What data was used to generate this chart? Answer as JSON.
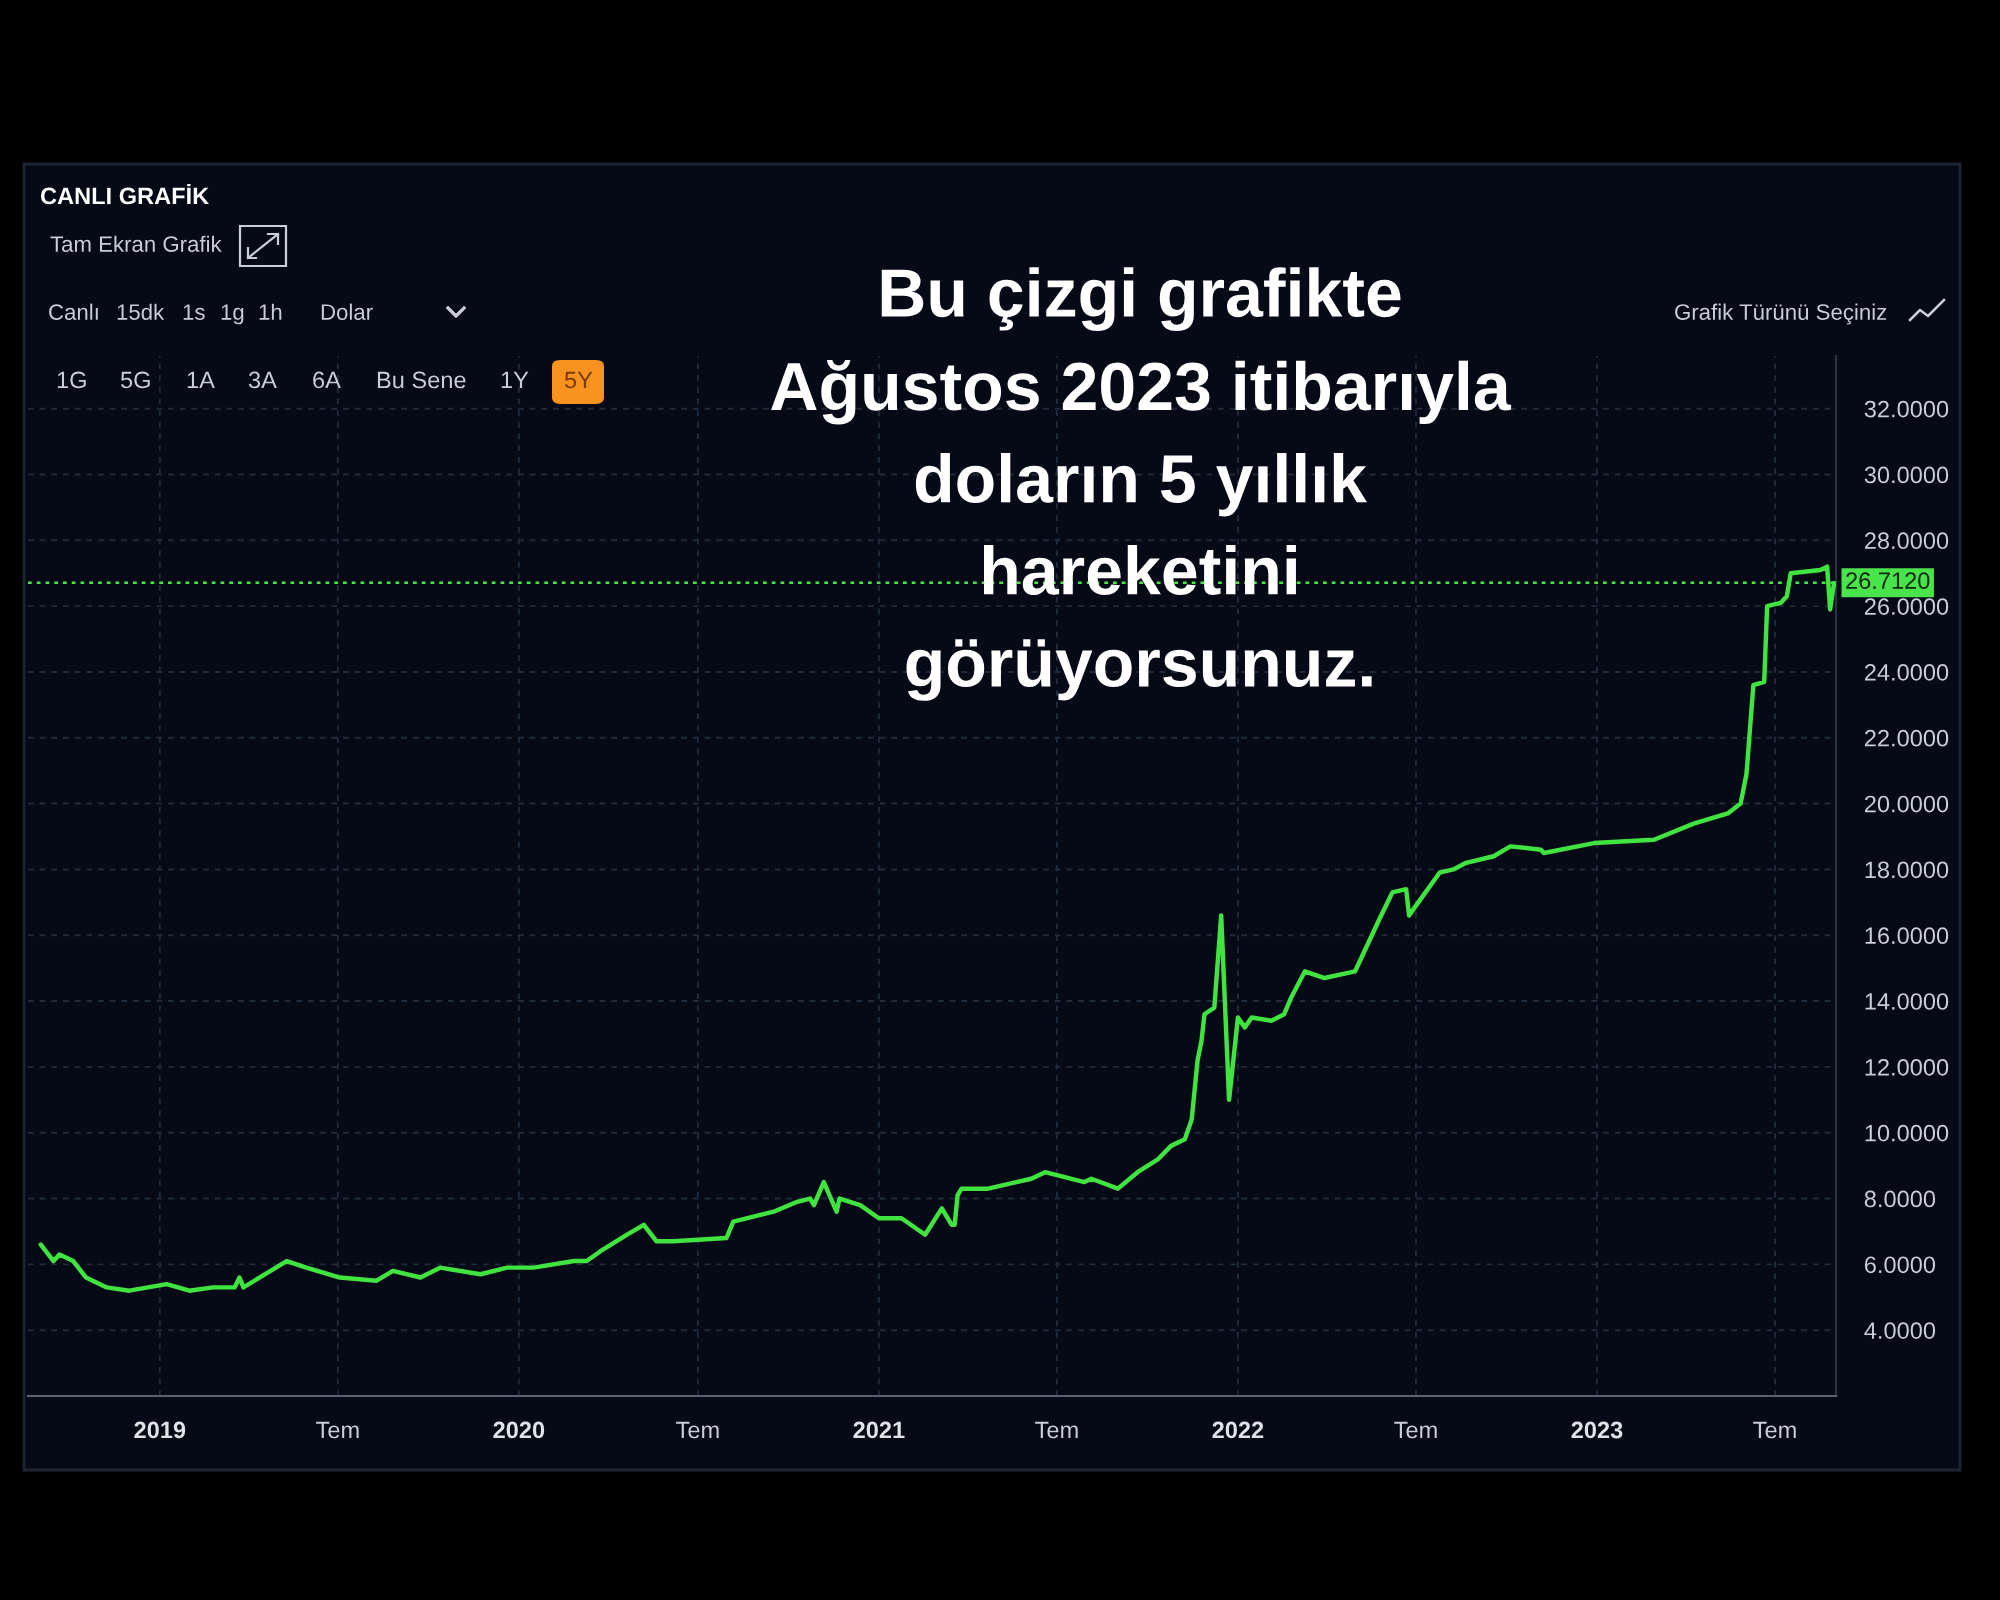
{
  "chart_data": {
    "type": "line",
    "title": "CANLI GRAFİK",
    "annotations": [
      "Bu çizgi grafikte\nAğustos 2023 itibarıyla\ndoların 5 yıllık\nhareketini\ngörüyorsunuz.",
      "Tam Ekran Grafik",
      "Canlı",
      "15dk",
      "1s",
      "1g",
      "1h",
      "Dolar",
      "1G",
      "5G",
      "1A",
      "3A",
      "6A",
      "Bu Sene",
      "1Y",
      "5Y",
      "Grafik Türünü Seçiniz"
    ],
    "x": [
      "2018-09-02",
      "2018-09-15",
      "2018-09-21",
      "2018-10-05",
      "2018-10-18",
      "2018-11-08",
      "2018-12-01",
      "2019-01-08",
      "2019-01-31",
      "2019-02-24",
      "2019-03-18",
      "2019-03-23",
      "2019-03-27",
      "2019-05-10",
      "2019-05-30",
      "2019-07-03",
      "2019-08-09",
      "2019-08-26",
      "2019-09-23",
      "2019-10-13",
      "2019-11-23",
      "2019-12-20",
      "2020-01-16",
      "2020-02-26",
      "2020-03-10",
      "2020-03-24",
      "2020-04-20",
      "2020-05-07",
      "2020-05-20",
      "2020-06-06",
      "2020-07-30",
      "2020-08-06",
      "2020-09-16",
      "2020-10-10",
      "2020-10-23",
      "2020-10-27",
      "2020-11-06",
      "2020-11-19",
      "2020-11-22",
      "2020-12-13",
      "2021-01-01",
      "2021-01-24",
      "2021-02-17",
      "2021-03-06",
      "2021-03-16",
      "2021-03-19",
      "2021-03-22",
      "2021-03-26",
      "2021-04-22",
      "2021-06-05",
      "2021-06-19",
      "2021-07-29",
      "2021-08-05",
      "2021-09-01",
      "2021-09-21",
      "2021-10-12",
      "2021-10-25",
      "2021-11-08",
      "2021-11-15",
      "2021-11-21",
      "2021-11-25",
      "2021-11-28",
      "2021-12-08",
      "2021-12-15",
      "2021-12-23",
      "2022-01-01",
      "2022-01-08",
      "2022-01-15",
      "2022-02-04",
      "2022-02-17",
      "2022-02-24",
      "2022-03-10",
      "2022-03-30",
      "2022-04-30",
      "2022-05-25",
      "2022-06-07",
      "2022-06-21",
      "2022-06-24",
      "2022-07-01",
      "2022-07-25",
      "2022-08-08",
      "2022-08-21",
      "2022-09-18",
      "2022-10-05",
      "2022-11-05",
      "2022-11-08",
      "2022-12-29",
      "2023-02-28",
      "2023-04-10",
      "2023-05-14",
      "2023-05-27",
      "2023-06-02",
      "2023-06-09",
      "2023-06-20",
      "2023-06-23",
      "2023-07-07",
      "2023-07-13",
      "2023-07-17",
      "2023-08-16",
      "2023-08-23",
      "2023-08-26",
      "2023-08-30"
    ],
    "series": [
      {
        "color": "#40e340",
        "values": [
          6.6,
          6.1,
          6.3,
          6.1,
          5.6,
          5.3,
          5.2,
          5.4,
          5.2,
          5.3,
          5.3,
          5.6,
          5.3,
          6.1,
          5.9,
          5.6,
          5.5,
          5.8,
          5.6,
          5.9,
          5.7,
          5.9,
          5.9,
          6.1,
          6.1,
          6.4,
          6.9,
          7.2,
          6.7,
          6.7,
          6.8,
          7.3,
          7.6,
          7.9,
          8.0,
          7.8,
          8.5,
          7.6,
          8.0,
          7.8,
          7.4,
          7.4,
          6.9,
          7.7,
          7.2,
          7.2,
          8.1,
          8.3,
          8.3,
          8.6,
          8.8,
          8.5,
          8.6,
          8.3,
          8.8,
          9.2,
          9.6,
          9.8,
          10.4,
          12.2,
          12.8,
          13.6,
          13.8,
          16.6,
          11.0,
          13.5,
          13.2,
          13.5,
          13.4,
          13.6,
          14.1,
          14.9,
          14.7,
          14.9,
          16.5,
          17.3,
          17.4,
          16.6,
          16.9,
          17.9,
          18.0,
          18.2,
          18.4,
          18.7,
          18.6,
          18.5,
          18.8,
          18.9,
          19.4,
          19.7,
          20.0,
          20.9,
          23.6,
          23.7,
          26.0,
          26.1,
          26.3,
          27.0,
          27.1,
          27.2,
          25.9,
          26.7
        ]
      }
    ],
    "xlim": [
      "2018-08-20",
      "2023-09-01"
    ],
    "xticks": [
      {
        "value": "2019-01-01",
        "label": "2019"
      },
      {
        "value": "2019-07-01",
        "label": "Tem"
      },
      {
        "value": "2020-01-01",
        "label": "2020"
      },
      {
        "value": "2020-07-01",
        "label": "Tem"
      },
      {
        "value": "2021-01-01",
        "label": "2021"
      },
      {
        "value": "2021-07-01",
        "label": "Tem"
      },
      {
        "value": "2022-01-01",
        "label": "2022"
      },
      {
        "value": "2022-07-01",
        "label": "Tem"
      },
      {
        "value": "2023-01-01",
        "label": "2023"
      },
      {
        "value": "2023-07-01",
        "label": "Tem"
      }
    ],
    "ylim": [
      2.0,
      33.6
    ],
    "yticks": [
      {
        "value": 4,
        "label": "4.0000"
      },
      {
        "value": 6,
        "label": "6.0000"
      },
      {
        "value": 8,
        "label": "8.0000"
      },
      {
        "value": 10,
        "label": "10.0000"
      },
      {
        "value": 12,
        "label": "12.0000"
      },
      {
        "value": 14,
        "label": "14.0000"
      },
      {
        "value": 16,
        "label": "16.0000"
      },
      {
        "value": 18,
        "label": "18.0000"
      },
      {
        "value": 20,
        "label": "20.0000"
      },
      {
        "value": 22,
        "label": "22.0000"
      },
      {
        "value": 24,
        "label": "24.0000"
      },
      {
        "value": 26,
        "label": "26.0000"
      },
      {
        "value": 28,
        "label": "28.0000"
      },
      {
        "value": 30,
        "label": "30.0000"
      },
      {
        "value": 32,
        "label": "32.0000"
      }
    ],
    "grid": true,
    "ref_lines": [
      {
        "axis": "y",
        "value": 26.712,
        "label": "26.7120",
        "color": "#4be34b",
        "line_style": "dotted"
      }
    ]
  }
}
